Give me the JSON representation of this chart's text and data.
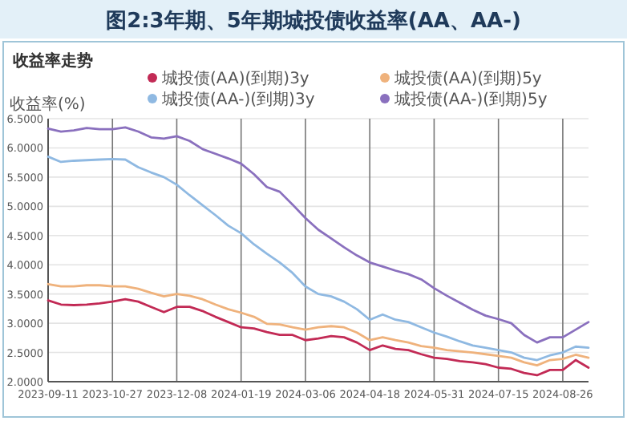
{
  "chart_data": {
    "type": "line",
    "title": "图2:3年期、5年期城投债收益率(AA、AA-)",
    "subtitle": "收益率走势",
    "ylabel": "收益率(%)",
    "categories": [
      "2023-09-11",
      null,
      null,
      null,
      null,
      "2023-10-27",
      null,
      null,
      null,
      null,
      "2023-12-08",
      null,
      null,
      null,
      null,
      "2024-01-19",
      null,
      null,
      null,
      null,
      "2024-03-06",
      null,
      null,
      null,
      null,
      "2024-04-18",
      null,
      null,
      null,
      null,
      "2024-05-31",
      null,
      null,
      null,
      null,
      "2024-07-15",
      null,
      null,
      null,
      null,
      "2024-08-26",
      null,
      null
    ],
    "series": [
      {
        "name": "城投债(AA)(到期)3y",
        "color": "#c22a55",
        "values": [
          3.39,
          3.32,
          3.31,
          3.32,
          3.34,
          3.37,
          3.41,
          3.37,
          3.28,
          3.19,
          3.28,
          3.28,
          3.21,
          3.11,
          3.02,
          2.93,
          2.91,
          2.85,
          2.8,
          2.8,
          2.71,
          2.74,
          2.78,
          2.76,
          2.67,
          2.54,
          2.62,
          2.56,
          2.54,
          2.47,
          2.41,
          2.39,
          2.35,
          2.33,
          2.3,
          2.24,
          2.22,
          2.15,
          2.11,
          2.2,
          2.2,
          2.37,
          2.24
        ]
      },
      {
        "name": "城投债(AA)(到期)5y",
        "color": "#efb27c",
        "values": [
          3.67,
          3.63,
          3.63,
          3.65,
          3.65,
          3.63,
          3.63,
          3.59,
          3.52,
          3.46,
          3.5,
          3.47,
          3.41,
          3.32,
          3.24,
          3.18,
          3.11,
          2.99,
          2.98,
          2.93,
          2.89,
          2.93,
          2.95,
          2.93,
          2.84,
          2.71,
          2.76,
          2.71,
          2.67,
          2.61,
          2.58,
          2.54,
          2.52,
          2.5,
          2.47,
          2.44,
          2.41,
          2.33,
          2.28,
          2.37,
          2.39,
          2.46,
          2.41
        ]
      },
      {
        "name": "城投债(AA-)(到期)3y",
        "color": "#8fb9e2",
        "values": [
          5.85,
          5.76,
          5.78,
          5.79,
          5.8,
          5.81,
          5.8,
          5.67,
          5.58,
          5.5,
          5.37,
          5.19,
          5.02,
          4.85,
          4.67,
          4.54,
          4.35,
          4.19,
          4.04,
          3.86,
          3.63,
          3.5,
          3.46,
          3.37,
          3.24,
          3.06,
          3.15,
          3.06,
          3.02,
          2.93,
          2.84,
          2.77,
          2.69,
          2.62,
          2.58,
          2.54,
          2.5,
          2.41,
          2.37,
          2.45,
          2.5,
          2.6,
          2.58
        ]
      },
      {
        "name": "城投债(AA-)(到期)5y",
        "color": "#8a70be",
        "values": [
          6.33,
          6.28,
          6.3,
          6.34,
          6.32,
          6.32,
          6.35,
          6.28,
          6.18,
          6.16,
          6.2,
          6.12,
          5.98,
          5.9,
          5.82,
          5.73,
          5.55,
          5.33,
          5.25,
          5.03,
          4.8,
          4.6,
          4.45,
          4.3,
          4.16,
          4.04,
          3.97,
          3.9,
          3.84,
          3.75,
          3.6,
          3.47,
          3.35,
          3.23,
          3.13,
          3.07,
          3.0,
          2.8,
          2.67,
          2.76,
          2.76,
          2.89,
          3.02
        ]
      }
    ],
    "ylim": [
      2.0,
      6.5
    ],
    "yticks": [
      {
        "value": 2.0,
        "label": "2.0000"
      },
      {
        "value": 2.5,
        "label": "2.5000"
      },
      {
        "value": 3.0,
        "label": "3.0000"
      },
      {
        "value": 3.5,
        "label": "3.5000"
      },
      {
        "value": 4.0,
        "label": "4.0000"
      },
      {
        "value": 4.5,
        "label": "4.5000"
      },
      {
        "value": 5.0,
        "label": "5.0000"
      },
      {
        "value": 5.5,
        "label": "5.5000"
      },
      {
        "value": 6.0,
        "label": "6.0000"
      },
      {
        "value": 6.5,
        "label": "6.5000"
      }
    ],
    "grid": true,
    "legend": "top",
    "marker": "none",
    "line_style": "solid"
  }
}
